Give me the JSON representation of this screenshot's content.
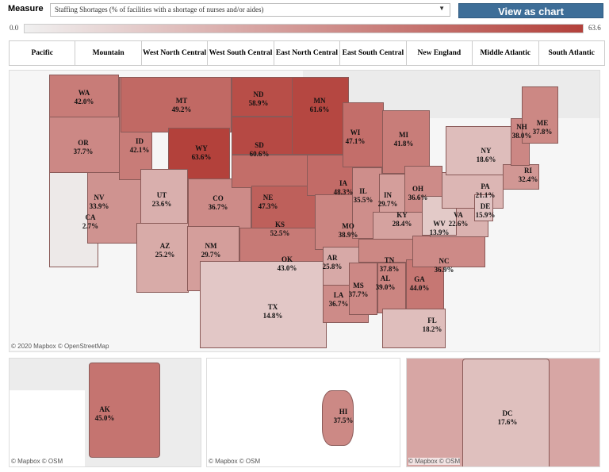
{
  "measure": {
    "label": "Measure",
    "selected": "Staffing Shortages (% of facilities with a shortage of nurses and/or aides)"
  },
  "view_chart_label": "View as chart",
  "legend": {
    "min": "0.0",
    "max": "63.6",
    "color_low": "#f0f0f0",
    "color_high": "#b3413b"
  },
  "regions": [
    "Pacific",
    "Mountain",
    "West North Central",
    "West South Central",
    "East North Central",
    "East South Central",
    "New England",
    "Middle Atlantic",
    "South Atlantic"
  ],
  "states": [
    {
      "code": "WA",
      "value": "42.0%"
    },
    {
      "code": "OR",
      "value": "37.7%"
    },
    {
      "code": "CA",
      "value": "2.7%"
    },
    {
      "code": "NV",
      "value": "33.9%"
    },
    {
      "code": "ID",
      "value": "42.1%"
    },
    {
      "code": "MT",
      "value": "49.2%"
    },
    {
      "code": "WY",
      "value": "63.6%"
    },
    {
      "code": "UT",
      "value": "23.6%"
    },
    {
      "code": "AZ",
      "value": "25.2%"
    },
    {
      "code": "CO",
      "value": "36.7%"
    },
    {
      "code": "NM",
      "value": "29.7%"
    },
    {
      "code": "ND",
      "value": "58.9%"
    },
    {
      "code": "SD",
      "value": "60.6%"
    },
    {
      "code": "NE",
      "value": "47.3%"
    },
    {
      "code": "KS",
      "value": "52.5%"
    },
    {
      "code": "OK",
      "value": "43.0%"
    },
    {
      "code": "TX",
      "value": "14.8%"
    },
    {
      "code": "MN",
      "value": "61.6%"
    },
    {
      "code": "IA",
      "value": "48.3%"
    },
    {
      "code": "MO",
      "value": "38.9%"
    },
    {
      "code": "AR",
      "value": "25.8%"
    },
    {
      "code": "LA",
      "value": "36.7%"
    },
    {
      "code": "WI",
      "value": "47.1%"
    },
    {
      "code": "IL",
      "value": "35.5%"
    },
    {
      "code": "MI",
      "value": "41.8%"
    },
    {
      "code": "IN",
      "value": "29.7%"
    },
    {
      "code": "OH",
      "value": "36.6%"
    },
    {
      "code": "KY",
      "value": "28.4%"
    },
    {
      "code": "TN",
      "value": "37.8%"
    },
    {
      "code": "MS",
      "value": "37.7%"
    },
    {
      "code": "AL",
      "value": "39.0%"
    },
    {
      "code": "GA",
      "value": "44.0%"
    },
    {
      "code": "FL",
      "value": "18.2%"
    },
    {
      "code": "NC",
      "value": "36.9%"
    },
    {
      "code": "VA",
      "value": "22.6%"
    },
    {
      "code": "WV",
      "value": "13.9%"
    },
    {
      "code": "PA",
      "value": "21.1%"
    },
    {
      "code": "NY",
      "value": "18.6%"
    },
    {
      "code": "DE",
      "value": "15.9%"
    },
    {
      "code": "RI",
      "value": "32.4%"
    },
    {
      "code": "NH",
      "value": "38.0%"
    },
    {
      "code": "ME",
      "value": "37.8%"
    }
  ],
  "insets": [
    {
      "code": "AK",
      "value": "45.0%"
    },
    {
      "code": "HI",
      "value": "37.5%"
    },
    {
      "code": "DC",
      "value": "17.6%"
    }
  ],
  "attribution_main": "© 2020 Mapbox © OpenStreetMap",
  "attribution_inset": "© Mapbox © OSM"
}
